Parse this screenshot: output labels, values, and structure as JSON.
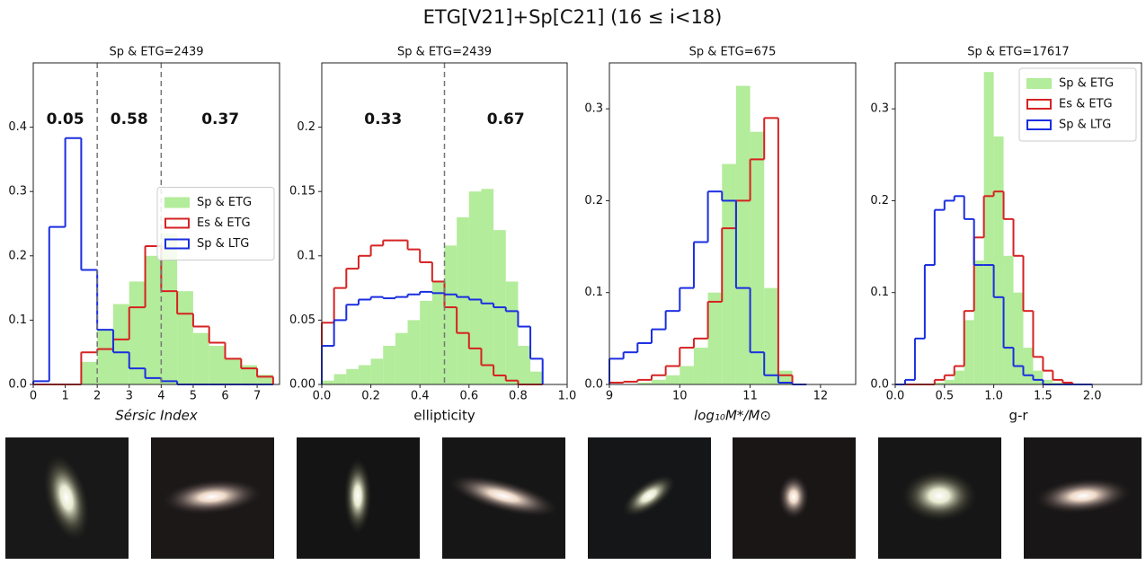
{
  "title": "ETG[V21]+Sp[C21] (16 ≤ i<18)",
  "chart_data": [
    {
      "type": "histogram",
      "title": "Sp & ETG=2439",
      "xlabel": "Sérsic Index",
      "xlim": [
        0,
        7.7
      ],
      "ylim": [
        0,
        0.5
      ],
      "xticks": [
        0,
        1,
        2,
        3,
        4,
        5,
        6,
        7
      ],
      "yticks": [
        {
          "value": 0,
          "label": "0.0"
        },
        0.1,
        0.2,
        0.3,
        0.4
      ],
      "bins": [
        0,
        0.5,
        1,
        1.5,
        2,
        2.5,
        3,
        3.5,
        4,
        4.5,
        5,
        5.5,
        6,
        6.5,
        7,
        7.5
      ],
      "legend": "center right",
      "vlines": [
        2,
        4
      ],
      "annotations": [
        "0.05",
        "0.58",
        "0.37"
      ],
      "series": [
        {
          "name": "Sp & ETG",
          "style": "fill",
          "color": "#b3ec9a",
          "values": [
            0,
            0,
            0,
            0.035,
            0.085,
            0.125,
            0.16,
            0.2,
            0.235,
            0.145,
            0.08,
            0.06,
            0.04,
            0.03,
            0.015
          ]
        },
        {
          "name": "Es & ETG",
          "style": "step",
          "color": "#d62222",
          "values": [
            0,
            0,
            0,
            0.05,
            0.055,
            0.07,
            0.12,
            0.215,
            0.145,
            0.11,
            0.09,
            0.065,
            0.04,
            0.025,
            0.012
          ]
        },
        {
          "name": "Sp & LTG",
          "style": "step",
          "color": "#1a2ee0",
          "values": [
            0.005,
            0.245,
            0.383,
            0.178,
            0.085,
            0.05,
            0.025,
            0.01,
            0.005,
            0,
            0,
            0,
            0,
            0,
            0
          ]
        }
      ]
    },
    {
      "type": "histogram",
      "title": "Sp & ETG=2439",
      "xlabel": "ellipticity",
      "xlim": [
        0,
        1
      ],
      "ylim": [
        0,
        0.25
      ],
      "xticks": [
        {
          "value": 0,
          "label": "0.0"
        },
        0.2,
        0.4,
        0.6,
        0.8,
        {
          "value": 1,
          "label": "1.0"
        }
      ],
      "yticks": [
        {
          "value": 0,
          "label": "0.00"
        },
        0.05,
        0.1,
        0.15,
        0.2
      ],
      "bins": [
        0,
        0.05,
        0.1,
        0.15,
        0.2,
        0.25,
        0.3,
        0.35,
        0.4,
        0.45,
        0.5,
        0.55,
        0.6,
        0.65,
        0.7,
        0.75,
        0.8,
        0.85,
        0.9
      ],
      "vlines": [
        0.5
      ],
      "annotations": [
        "0.33",
        "0.67"
      ],
      "series": [
        {
          "style": "fill",
          "color": "#b3ec9a",
          "values": [
            0.003,
            0.008,
            0.012,
            0.015,
            0.02,
            0.03,
            0.04,
            0.05,
            0.065,
            0.08,
            0.108,
            0.13,
            0.15,
            0.152,
            0.12,
            0.08,
            0.03,
            0.01
          ]
        },
        {
          "style": "step",
          "color": "#d62222",
          "values": [
            0.048,
            0.075,
            0.09,
            0.1,
            0.108,
            0.112,
            0.112,
            0.105,
            0.095,
            0.08,
            0.06,
            0.04,
            0.028,
            0.015,
            0.007,
            0.003,
            0,
            0
          ]
        },
        {
          "style": "step",
          "color": "#1a2ee0",
          "values": [
            0.03,
            0.05,
            0.062,
            0.066,
            0.068,
            0.067,
            0.068,
            0.07,
            0.072,
            0.071,
            0.07,
            0.068,
            0.066,
            0.063,
            0.06,
            0.057,
            0.045,
            0.02
          ]
        }
      ]
    },
    {
      "type": "histogram",
      "title": "Sp & ETG=675",
      "xlabel": "log₁₀M*/M⊙",
      "xlim": [
        9,
        12.5
      ],
      "ylim": [
        0,
        0.35
      ],
      "xticks": [
        9,
        10,
        11,
        12
      ],
      "yticks": [
        {
          "value": 0,
          "label": "0.0"
        },
        0.1,
        0.2,
        0.3
      ],
      "bins": [
        9,
        9.2,
        9.4,
        9.6,
        9.8,
        10,
        10.2,
        10.4,
        10.6,
        10.8,
        11,
        11.2,
        11.4,
        11.6,
        11.8
      ],
      "series": [
        {
          "style": "fill",
          "color": "#b3ec9a",
          "values": [
            0,
            0,
            0.002,
            0.005,
            0.01,
            0.02,
            0.04,
            0.1,
            0.24,
            0.325,
            0.275,
            0.105,
            0.015,
            0
          ]
        },
        {
          "style": "step",
          "color": "#d62222",
          "values": [
            0.002,
            0.003,
            0.005,
            0.01,
            0.02,
            0.04,
            0.05,
            0.09,
            0.17,
            0.2,
            0.245,
            0.29,
            0.01,
            0
          ]
        },
        {
          "style": "step",
          "color": "#1a2ee0",
          "values": [
            0.028,
            0.035,
            0.045,
            0.06,
            0.08,
            0.105,
            0.155,
            0.21,
            0.2,
            0.105,
            0.035,
            0.01,
            0.002,
            0
          ]
        }
      ]
    },
    {
      "type": "histogram",
      "title": "Sp & ETG=17617",
      "xlabel": "g-r",
      "xlim": [
        0,
        2.5
      ],
      "ylim": [
        0,
        0.35
      ],
      "xticks": [
        {
          "value": 0,
          "label": "0.0"
        },
        0.5,
        {
          "value": 1,
          "label": "1.0"
        },
        1.5,
        {
          "value": 2,
          "label": "2.0"
        }
      ],
      "yticks": [
        {
          "value": 0,
          "label": "0.0"
        },
        0.1,
        0.2,
        0.3
      ],
      "bins": [
        0,
        0.1,
        0.2,
        0.3,
        0.4,
        0.5,
        0.6,
        0.7,
        0.8,
        0.9,
        1,
        1.1,
        1.2,
        1.3,
        1.4,
        1.5,
        1.6,
        1.7,
        1.8,
        1.9,
        2
      ],
      "legend": "upper right",
      "series": [
        {
          "name": "Sp & ETG",
          "style": "fill",
          "color": "#b3ec9a",
          "values": [
            0,
            0,
            0,
            0,
            0.002,
            0.005,
            0.015,
            0.07,
            0.135,
            0.34,
            0.27,
            0.14,
            0.1,
            0.04,
            0.015,
            0.005,
            0.002,
            0,
            0,
            0
          ]
        },
        {
          "name": "Es & ETG",
          "style": "step",
          "color": "#d62222",
          "values": [
            0,
            0,
            0,
            0,
            0.005,
            0.01,
            0.02,
            0.08,
            0.16,
            0.205,
            0.21,
            0.18,
            0.14,
            0.08,
            0.03,
            0.015,
            0.005,
            0.002,
            0,
            0
          ]
        },
        {
          "name": "Sp & LTG",
          "style": "step",
          "color": "#1a2ee0",
          "values": [
            0,
            0.005,
            0.05,
            0.13,
            0.19,
            0.2,
            0.205,
            0.18,
            0.13,
            0.13,
            0.095,
            0.04,
            0.02,
            0.01,
            0.005,
            0,
            0,
            0,
            0,
            0
          ]
        }
      ]
    }
  ]
}
